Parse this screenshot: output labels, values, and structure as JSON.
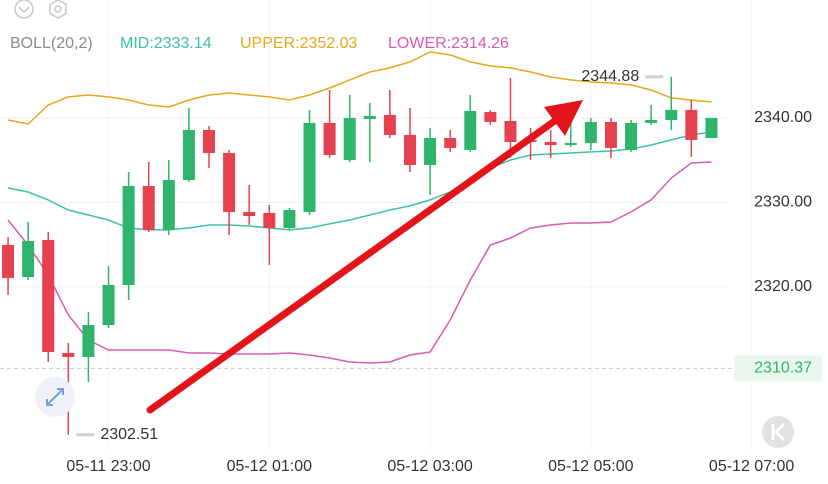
{
  "chart_data": {
    "type": "candlestick",
    "indicator": "BOLL(20,2)",
    "series": [
      {
        "label": "MID:2333.14",
        "color": "#3fc2a5",
        "values": [
          2331.72,
          2331.24,
          2330.3,
          2329.11,
          2328.52,
          2327.93,
          2326.98,
          2326.75,
          2326.75,
          2326.98,
          2327.34,
          2327.34,
          2327.22,
          2326.98,
          2326.75,
          2326.98,
          2327.46,
          2327.93,
          2328.52,
          2329.11,
          2329.59,
          2330.3,
          2331.24,
          2332.66,
          2334.08,
          2335.03,
          2335.62,
          2335.74,
          2335.86,
          2335.98,
          2336.09,
          2336.33,
          2336.8,
          2337.4,
          2337.99,
          2338.34
        ]
      },
      {
        "label": "UPPER:2352.03",
        "color": "#e3a81c",
        "values": [
          2339.76,
          2339.29,
          2341.54,
          2342.49,
          2342.72,
          2342.49,
          2342.13,
          2341.54,
          2341.3,
          2342.13,
          2342.72,
          2342.96,
          2342.72,
          2342.49,
          2342.13,
          2342.72,
          2343.55,
          2344.5,
          2345.44,
          2345.92,
          2346.63,
          2347.81,
          2347.46,
          2346.63,
          2346.15,
          2345.92,
          2345.44,
          2344.85,
          2344.5,
          2344.26,
          2344.14,
          2343.91,
          2343.31,
          2342.37,
          2342.13,
          2341.89
        ]
      },
      {
        "label": "LOWER:2314.26",
        "color": "#d65cb4",
        "values": [
          2327.93,
          2324.97,
          2321.42,
          2316.69,
          2313.73,
          2312.54,
          2312.54,
          2312.54,
          2312.54,
          2312.19,
          2312.19,
          2312.07,
          2312.07,
          2312.07,
          2312.19,
          2311.95,
          2311.6,
          2311.12,
          2311.01,
          2311.12,
          2311.95,
          2312.31,
          2316.09,
          2320.83,
          2324.97,
          2325.8,
          2326.98,
          2327.34,
          2327.57,
          2327.57,
          2327.69,
          2328.88,
          2330.3,
          2332.9,
          2334.67,
          2334.79
        ]
      }
    ],
    "open": [
      2324.97,
      2321.18,
      2325.56,
      2312.19,
      2311.72,
      2315.5,
      2320.24,
      2331.95,
      2326.75,
      2332.66,
      2338.58,
      2335.86,
      2328.88,
      2328.76,
      2326.98,
      2328.88,
      2339.41,
      2335.03,
      2339.88,
      2340.36,
      2337.99,
      2334.44,
      2337.63,
      2336.21,
      2340.71,
      2339.64,
      2337.4,
      2337.16,
      2336.8,
      2337.04,
      2339.53,
      2336.21,
      2339.41,
      2339.76,
      2340.95,
      2337.63
    ],
    "high": [
      2325.92,
      2327.69,
      2326.51,
      2313.37,
      2317.04,
      2322.49,
      2333.61,
      2334.79,
      2335.03,
      2341.18,
      2339.05,
      2336.21,
      2332.07,
      2329.7,
      2329.35,
      2340.95,
      2343.31,
      2342.72,
      2341.78,
      2343.31,
      2341.18,
      2338.82,
      2338.58,
      2342.72,
      2340.95,
      2344.73,
      2338.82,
      2338.58,
      2339.53,
      2340.0,
      2340.0,
      2339.76,
      2341.54,
      2344.88,
      2342.13,
      2340.0
    ],
    "low": [
      2319.05,
      2320.83,
      2311.12,
      2302.51,
      2308.76,
      2315.15,
      2318.46,
      2326.51,
      2326.15,
      2332.43,
      2334.08,
      2326.15,
      2327.34,
      2322.6,
      2326.75,
      2328.52,
      2335.27,
      2334.79,
      2334.79,
      2337.63,
      2333.61,
      2330.89,
      2335.98,
      2335.98,
      2339.17,
      2335.27,
      2335.03,
      2335.27,
      2336.57,
      2336.21,
      2335.27,
      2335.98,
      2339.17,
      2338.58,
      2335.38,
      2337.63
    ],
    "close": [
      2321.07,
      2325.44,
      2312.31,
      2311.72,
      2315.5,
      2320.24,
      2331.95,
      2326.75,
      2332.66,
      2338.58,
      2335.86,
      2328.88,
      2328.4,
      2326.98,
      2329.11,
      2339.41,
      2335.62,
      2340.0,
      2340.24,
      2337.99,
      2334.44,
      2337.63,
      2336.45,
      2340.83,
      2339.53,
      2337.16,
      2337.16,
      2336.8,
      2337.04,
      2339.53,
      2336.45,
      2339.41,
      2339.76,
      2340.95,
      2337.4,
      2340.0
    ],
    "up_color": "#2fb56b",
    "down_color": "#e5414f",
    "last_price": 2310.37,
    "last_price_color": "#2fb56b",
    "ylim": [
      2300.71,
      2353.96
    ],
    "yticks": [
      {
        "value": 2320,
        "label": "2320.00"
      },
      {
        "value": 2330,
        "label": "2330.00"
      },
      {
        "value": 2340,
        "label": "2340.00"
      }
    ],
    "xlim": [
      -0.4,
      40.8
    ],
    "xticks": [
      {
        "value": 5,
        "label": "05-11 23:00"
      },
      {
        "value": 13,
        "label": "05-12 01:00"
      },
      {
        "value": 21,
        "label": "05-12 03:00"
      },
      {
        "value": 29,
        "label": "05-12 05:00"
      },
      {
        "value": 37,
        "label": "05-12 07:00"
      }
    ],
    "grid": true
  }
}
